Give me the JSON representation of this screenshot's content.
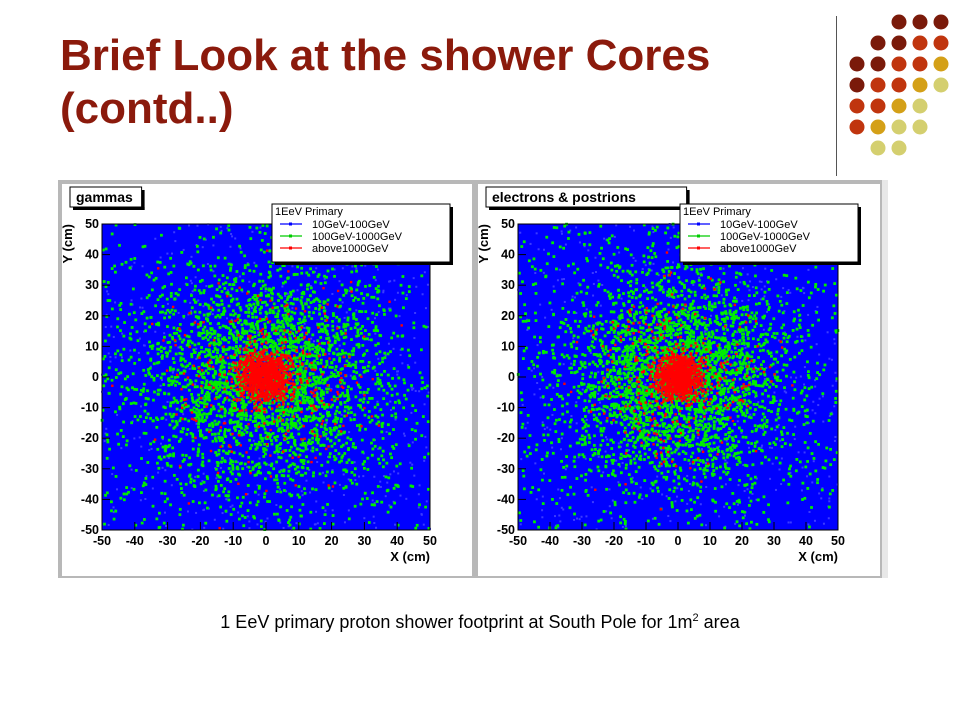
{
  "slide": {
    "title_line1": "Brief Look at the shower Cores",
    "title_line2": "(contd..)",
    "caption_main": "1 EeV primary proton shower footprint at South Pole for 1m",
    "caption_sup": "2",
    "caption_end": " area"
  },
  "decoration": {
    "dot_colors": [
      "#7a1a0a",
      "#c0350e",
      "#d4a017",
      "#d4cf6f"
    ],
    "grid_color": "#555555"
  },
  "chart_data": [
    {
      "type": "scatter",
      "title": "gammas",
      "xlabel": "X (cm)",
      "ylabel": "Y (cm)",
      "xlim": [
        -50,
        50
      ],
      "ylim": [
        -50,
        50
      ],
      "xticks": [
        "-50",
        "-40",
        "-30",
        "-20",
        "-10",
        "0",
        "10",
        "20",
        "30",
        "40",
        "50"
      ],
      "yticks": [
        "-50",
        "-40",
        "-30",
        "-20",
        "-10",
        "0",
        "10",
        "20",
        "30",
        "40",
        "50"
      ],
      "legend_title": "1EeV Primary",
      "legend_position": "top-right",
      "background_color": "#0000ff",
      "series": [
        {
          "name": "10GeV-100GeV",
          "color": "#0000ff",
          "distribution": "uniform"
        },
        {
          "name": "100GeV-1000GeV",
          "color": "#00ee00",
          "core": [
            0,
            0
          ],
          "spread": 18
        },
        {
          "name": "above1000GeV",
          "color": "#ff0000",
          "core": [
            0,
            0
          ],
          "spread": 4
        }
      ]
    },
    {
      "type": "scatter",
      "title": "electrons & postrions",
      "xlabel": "X (cm)",
      "ylabel": "Y (cm)",
      "xlim": [
        -50,
        50
      ],
      "ylim": [
        -50,
        50
      ],
      "xticks": [
        "-50",
        "-40",
        "-30",
        "-20",
        "-10",
        "0",
        "10",
        "20",
        "30",
        "40",
        "50"
      ],
      "yticks": [
        "-50",
        "-40",
        "-30",
        "-20",
        "-10",
        "0",
        "10",
        "20",
        "30",
        "40",
        "50"
      ],
      "legend_title": "1EeV Primary",
      "legend_position": "top-right",
      "background_color": "#0000ff",
      "series": [
        {
          "name": "10GeV-100GeV",
          "color": "#0000ff",
          "distribution": "uniform"
        },
        {
          "name": "100GeV-1000GeV",
          "color": "#00ee00",
          "core": [
            0,
            0
          ],
          "spread": 17
        },
        {
          "name": "above1000GeV",
          "color": "#ff0000",
          "core": [
            0,
            0
          ],
          "spread": 3.5
        }
      ]
    }
  ]
}
